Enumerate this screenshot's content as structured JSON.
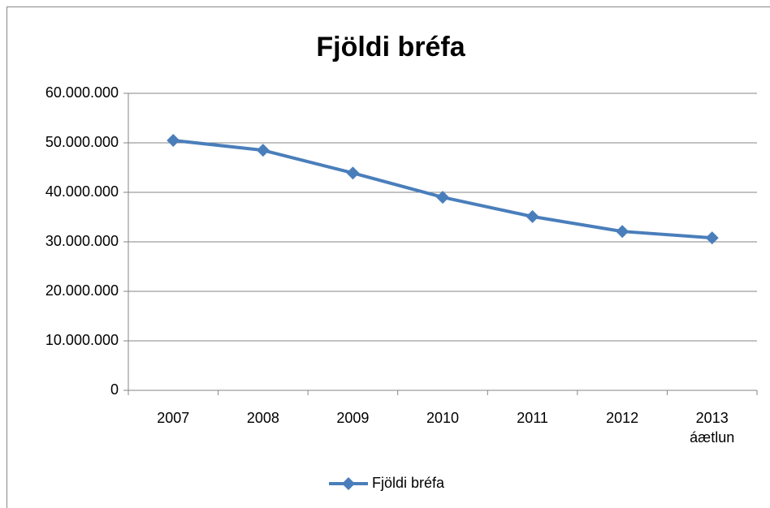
{
  "chart_data": {
    "type": "line",
    "title": "Fjöldi bréfa",
    "categories": [
      "2007",
      "2008",
      "2009",
      "2010",
      "2011",
      "2012",
      "2013 áætlun"
    ],
    "series": [
      {
        "name": "Fjöldi bréfa",
        "color": "#4a7ebb",
        "values": [
          50500000,
          48500000,
          43900000,
          39000000,
          35100000,
          32100000,
          30800000
        ]
      }
    ],
    "ylim": [
      0,
      60000000
    ],
    "yticks": [
      0,
      {
        "value": 10000000,
        "label": "10.000.000"
      },
      {
        "value": 20000000,
        "label": "20.000.000"
      },
      {
        "value": 30000000,
        "label": "30.000.000"
      },
      {
        "value": 40000000,
        "label": "40.000.000"
      },
      {
        "value": 50000000,
        "label": "50.000.000"
      },
      {
        "value": 60000000,
        "label": "60.000.000"
      }
    ],
    "grid": true,
    "legend": "bottom"
  }
}
